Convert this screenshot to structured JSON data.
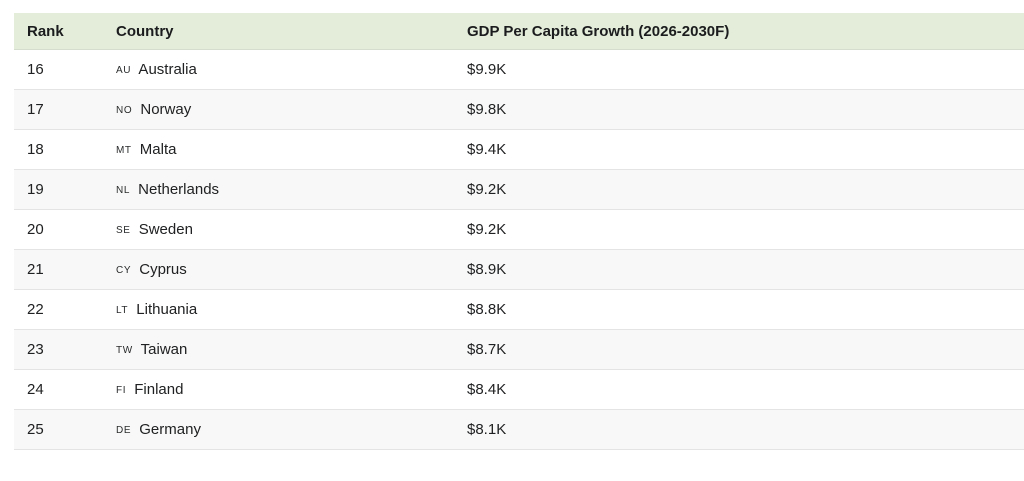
{
  "table": {
    "columns": [
      "Rank",
      "Country",
      "GDP Per Capita Growth (2026-2030F)"
    ],
    "rows": [
      {
        "rank": "16",
        "code": "AU",
        "country": "Australia",
        "value": "$9.9K"
      },
      {
        "rank": "17",
        "code": "NO",
        "country": "Norway",
        "value": "$9.8K"
      },
      {
        "rank": "18",
        "code": "MT",
        "country": "Malta",
        "value": "$9.4K"
      },
      {
        "rank": "19",
        "code": "NL",
        "country": "Netherlands",
        "value": "$9.2K"
      },
      {
        "rank": "20",
        "code": "SE",
        "country": "Sweden",
        "value": "$9.2K"
      },
      {
        "rank": "21",
        "code": "CY",
        "country": "Cyprus",
        "value": "$8.9K"
      },
      {
        "rank": "22",
        "code": "LT",
        "country": "Lithuania",
        "value": "$8.8K"
      },
      {
        "rank": "23",
        "code": "TW",
        "country": "Taiwan",
        "value": "$8.7K"
      },
      {
        "rank": "24",
        "code": "FI",
        "country": "Finland",
        "value": "$8.4K"
      },
      {
        "rank": "25",
        "code": "DE",
        "country": "Germany",
        "value": "$8.1K"
      }
    ],
    "colors": {
      "header_bg": "#e3edda",
      "row_alt_bg": "#f8f8f8",
      "row_border": "#e4e4e4",
      "text": "#202122"
    }
  },
  "chart_data": {
    "type": "table",
    "title": "GDP Per Capita Growth (2026-2030F)",
    "columns": [
      "Rank",
      "Country",
      "GDP Per Capita Growth (2026-2030F)"
    ],
    "categories": [
      "Australia",
      "Norway",
      "Malta",
      "Netherlands",
      "Sweden",
      "Cyprus",
      "Lithuania",
      "Taiwan",
      "Finland",
      "Germany"
    ],
    "ranks": [
      16,
      17,
      18,
      19,
      20,
      21,
      22,
      23,
      24,
      25
    ],
    "country_codes": [
      "AU",
      "NO",
      "MT",
      "NL",
      "SE",
      "CY",
      "LT",
      "TW",
      "FI",
      "DE"
    ],
    "values_label": [
      "$9.9K",
      "$9.8K",
      "$9.4K",
      "$9.2K",
      "$9.2K",
      "$8.9K",
      "$8.8K",
      "$8.7K",
      "$8.4K",
      "$8.1K"
    ],
    "values_usd": [
      9900,
      9800,
      9400,
      9200,
      9200,
      8900,
      8800,
      8700,
      8400,
      8100
    ]
  }
}
